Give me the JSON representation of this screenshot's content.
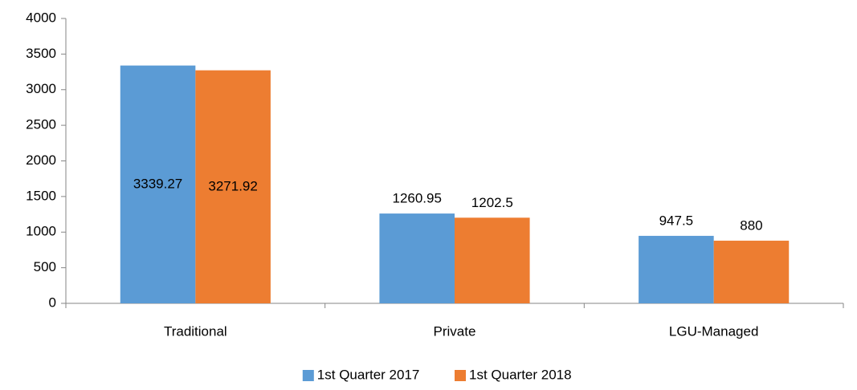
{
  "chart_data": {
    "type": "bar",
    "categories": [
      "Traditional",
      "Private",
      "LGU-Managed"
    ],
    "series": [
      {
        "name": "1st Quarter 2017",
        "color": "#5b9bd5",
        "values": [
          3339.27,
          1260.95,
          947.5
        ]
      },
      {
        "name": "1st Quarter 2018",
        "color": "#ed7d31",
        "values": [
          3271.92,
          1202.5,
          880
        ]
      }
    ],
    "ylim": [
      0,
      4000
    ],
    "yticks": [
      0,
      500,
      1000,
      1500,
      2000,
      2500,
      3000,
      3500,
      4000
    ],
    "legend": "bottom"
  }
}
